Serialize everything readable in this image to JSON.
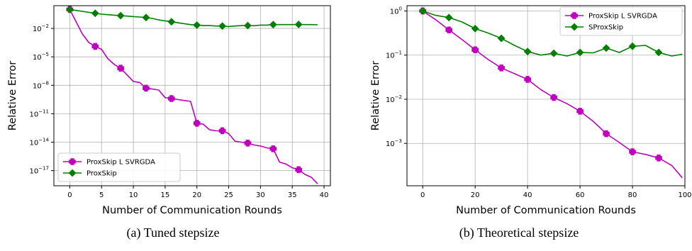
{
  "chart_data": [
    {
      "type": "line",
      "id": "a",
      "caption": "(a) Tuned stepsize",
      "xlabel": "Number of Communication Rounds",
      "ylabel": "Relative Error",
      "yscale": "log",
      "xlim": [
        -2.5,
        41
      ],
      "ylim_exp": [
        -18.6,
        0.4
      ],
      "xticks": [
        0,
        5,
        10,
        15,
        20,
        25,
        30,
        35,
        40
      ],
      "yticks": [
        {
          "exp": -2,
          "label": "10",
          "sup": "−2"
        },
        {
          "exp": -5,
          "label": "10",
          "sup": "−5"
        },
        {
          "exp": -8,
          "label": "10",
          "sup": "−8"
        },
        {
          "exp": -11,
          "label": "10",
          "sup": "−11"
        },
        {
          "exp": -14,
          "label": "10",
          "sup": "−14"
        },
        {
          "exp": -17,
          "label": "10",
          "sup": "−17"
        }
      ],
      "grid": true,
      "legend_position": "lower-left",
      "series": [
        {
          "name": "ProxSkip L SVRGDA",
          "color": "#bf00bf",
          "marker": "plus",
          "x": [
            0,
            1,
            2,
            3,
            4,
            5,
            6,
            7,
            8,
            9,
            10,
            11,
            12,
            13,
            14,
            15,
            16,
            17,
            18,
            19,
            20,
            21,
            22,
            23,
            24,
            25,
            26,
            27,
            28,
            29,
            30,
            31,
            32,
            33,
            34,
            35,
            36,
            37,
            38,
            39
          ],
          "log10_y": [
            0,
            -1.3,
            -2.6,
            -3.5,
            -3.9,
            -4.2,
            -5.2,
            -5.8,
            -6.2,
            -6.9,
            -7.6,
            -7.7,
            -8.3,
            -8.4,
            -8.5,
            -9.3,
            -9.4,
            -9.5,
            -9.6,
            -9.7,
            -12.0,
            -12.1,
            -12.7,
            -12.8,
            -12.8,
            -13.1,
            -13.9,
            -14.0,
            -14.1,
            -14.3,
            -14.4,
            -14.6,
            -14.7,
            -16.1,
            -16.3,
            -16.7,
            -16.9,
            -17.4,
            -17.7,
            -18.4
          ],
          "markers_at": [
            0,
            4,
            8,
            12,
            16,
            20,
            24,
            28,
            32,
            36
          ]
        },
        {
          "name": "ProxSkip",
          "color": "#008000",
          "marker": "diamond",
          "x": [
            0,
            1,
            2,
            3,
            4,
            5,
            6,
            7,
            8,
            9,
            10,
            11,
            12,
            13,
            14,
            15,
            16,
            17,
            18,
            19,
            20,
            21,
            22,
            23,
            24,
            25,
            26,
            27,
            28,
            29,
            30,
            31,
            32,
            33,
            34,
            35,
            36,
            37,
            38,
            39
          ],
          "log10_y": [
            0,
            -0.1,
            -0.2,
            -0.3,
            -0.4,
            -0.5,
            -0.55,
            -0.6,
            -0.65,
            -0.7,
            -0.75,
            -0.8,
            -0.85,
            -0.95,
            -1.1,
            -1.2,
            -1.3,
            -1.4,
            -1.5,
            -1.6,
            -1.65,
            -1.7,
            -1.7,
            -1.75,
            -1.75,
            -1.8,
            -1.75,
            -1.7,
            -1.7,
            -1.72,
            -1.65,
            -1.65,
            -1.6,
            -1.6,
            -1.6,
            -1.6,
            -1.58,
            -1.6,
            -1.6,
            -1.62
          ],
          "markers_at": [
            0,
            4,
            8,
            12,
            16,
            20,
            24,
            28,
            32,
            36
          ]
        }
      ]
    },
    {
      "type": "line",
      "id": "b",
      "caption": "(b) Theoretical stepsize",
      "xlabel": "Number of Communication Rounds",
      "ylabel": "Relative Error",
      "yscale": "log",
      "xlim": [
        -6,
        100
      ],
      "ylim_exp": [
        -3.96,
        0.12
      ],
      "xticks": [
        0,
        20,
        40,
        60,
        80,
        100
      ],
      "yticks": [
        {
          "exp": 0,
          "label": "10",
          "sup": "0"
        },
        {
          "exp": -1,
          "label": "10",
          "sup": "−1"
        },
        {
          "exp": -2,
          "label": "10",
          "sup": "−2"
        },
        {
          "exp": -3,
          "label": "10",
          "sup": "−3"
        }
      ],
      "grid": true,
      "legend_position": "upper-right",
      "series": [
        {
          "name": "ProxSkip L SVRGDA",
          "color": "#bf00bf",
          "marker": "plus",
          "x": [
            0,
            5,
            10,
            15,
            20,
            25,
            30,
            35,
            40,
            45,
            50,
            55,
            60,
            65,
            70,
            75,
            80,
            85,
            90,
            95,
            99
          ],
          "log10_y": [
            0,
            -0.2,
            -0.43,
            -0.65,
            -0.88,
            -1.1,
            -1.29,
            -1.42,
            -1.55,
            -1.78,
            -1.96,
            -2.1,
            -2.27,
            -2.5,
            -2.78,
            -2.98,
            -3.19,
            -3.25,
            -3.33,
            -3.5,
            -3.78
          ],
          "markers_at": [
            0,
            10,
            20,
            30,
            40,
            50,
            60,
            70,
            80,
            90
          ]
        },
        {
          "name": "SProxSkip",
          "color": "#008000",
          "marker": "diamond",
          "x": [
            0,
            5,
            10,
            15,
            20,
            25,
            30,
            35,
            40,
            45,
            50,
            55,
            60,
            65,
            70,
            75,
            80,
            85,
            90,
            95,
            99
          ],
          "log10_y": [
            0,
            -0.1,
            -0.15,
            -0.25,
            -0.4,
            -0.5,
            -0.62,
            -0.78,
            -0.92,
            -1.0,
            -0.96,
            -1.02,
            -0.94,
            -0.95,
            -0.84,
            -0.94,
            -0.8,
            -0.78,
            -0.94,
            -1.02,
            -0.98
          ],
          "markers_at": [
            0,
            10,
            20,
            30,
            40,
            50,
            60,
            70,
            80,
            90
          ]
        }
      ]
    }
  ]
}
